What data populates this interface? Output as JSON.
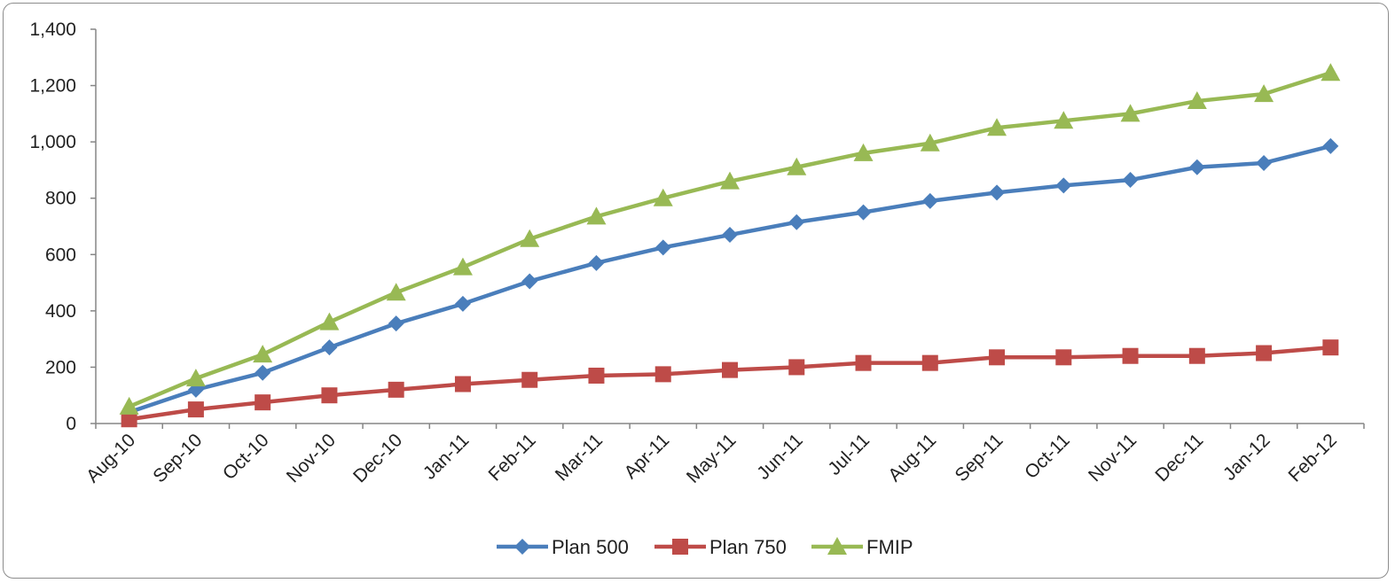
{
  "chart_data": {
    "type": "line",
    "title": "",
    "xlabel": "",
    "ylabel": "",
    "ylim": [
      0,
      1400
    ],
    "yticks": [
      "0",
      "200",
      "400",
      "600",
      "800",
      "1,000",
      "1,200",
      "1,400"
    ],
    "categories": [
      "Aug-10",
      "Sep-10",
      "Oct-10",
      "Nov-10",
      "Dec-10",
      "Jan-11",
      "Feb-11",
      "Mar-11",
      "Apr-11",
      "May-11",
      "Jun-11",
      "Jul-11",
      "Aug-11",
      "Sep-11",
      "Oct-11",
      "Nov-11",
      "Dec-11",
      "Jan-12",
      "Feb-12"
    ],
    "grid": false,
    "legend_position": "bottom",
    "series": [
      {
        "name": "Plan 500",
        "color": "#4a7ebb",
        "marker": "diamond",
        "values": [
          40,
          120,
          180,
          270,
          355,
          425,
          505,
          570,
          625,
          670,
          715,
          750,
          790,
          820,
          845,
          865,
          910,
          925,
          985
        ]
      },
      {
        "name": "Plan 750",
        "color": "#be4b48",
        "marker": "square",
        "values": [
          15,
          50,
          75,
          100,
          120,
          140,
          155,
          170,
          175,
          190,
          200,
          215,
          215,
          235,
          235,
          240,
          240,
          250,
          270
        ]
      },
      {
        "name": "FMIP",
        "color": "#98b954",
        "marker": "triangle",
        "values": [
          60,
          160,
          245,
          360,
          465,
          555,
          655,
          735,
          800,
          860,
          910,
          960,
          995,
          1050,
          1075,
          1100,
          1145,
          1170,
          1245
        ]
      }
    ]
  }
}
